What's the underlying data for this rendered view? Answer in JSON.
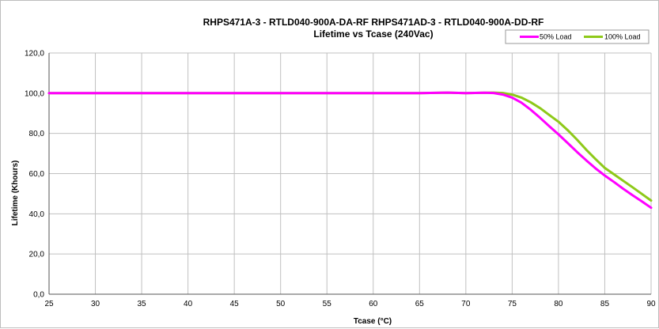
{
  "chart_data": {
    "type": "line",
    "title": "RHPS471A-3 - RTLD040-900A-DA-RF    RHPS471AD-3 - RTLD040-900A-DD-RF",
    "subtitle": "Lifetime vs Tcase (240Vac)",
    "xlabel": "Tcase (°C)",
    "ylabel": "Lifetime (Khours)",
    "xlim": [
      25,
      90
    ],
    "ylim": [
      0,
      120
    ],
    "x_ticks": [
      25,
      30,
      35,
      40,
      45,
      50,
      55,
      60,
      65,
      70,
      75,
      80,
      85,
      90
    ],
    "x_tick_labels": [
      "25",
      "30",
      "35",
      "40",
      "45",
      "50",
      "55",
      "60",
      "65",
      "70",
      "75",
      "80",
      "85",
      "90"
    ],
    "y_ticks": [
      0,
      20,
      40,
      60,
      80,
      100,
      120
    ],
    "y_tick_labels": [
      "0,0",
      "20,0",
      "40,0",
      "60,0",
      "80,0",
      "100,0",
      "120,0"
    ],
    "grid": true,
    "legend_position": "top-right",
    "series": [
      {
        "name": "50% Load",
        "color": "#ff00ff",
        "x": [
          25,
          30,
          35,
          40,
          45,
          50,
          55,
          60,
          65,
          68,
          70,
          72,
          73,
          74,
          75,
          76,
          77,
          78,
          79,
          80,
          81,
          82,
          83,
          84,
          85,
          86,
          87,
          88,
          89,
          90
        ],
        "y": [
          100,
          100,
          100,
          100,
          100,
          100,
          100,
          100,
          100,
          100.3,
          100,
          100.2,
          100.1,
          99.3,
          97.8,
          95.3,
          91.8,
          87.8,
          83.6,
          79.5,
          75.2,
          70.8,
          66.6,
          62.6,
          59,
          55.8,
          52.4,
          49.2,
          46.2,
          43
        ]
      },
      {
        "name": "100% Load",
        "color": "#8ec919",
        "x": [
          25,
          30,
          35,
          40,
          45,
          50,
          55,
          60,
          65,
          68,
          70,
          72,
          73,
          74,
          75,
          76,
          77,
          78,
          79,
          80,
          81,
          82,
          83,
          84,
          85,
          86,
          87,
          88,
          89,
          90
        ],
        "y": [
          100,
          100,
          100,
          100,
          100,
          100,
          100,
          100,
          100,
          100.3,
          100,
          100.2,
          100.3,
          100.1,
          99.3,
          97.8,
          95.5,
          92.6,
          89.2,
          85.8,
          81.6,
          76.9,
          71.9,
          67.2,
          62.8,
          59.6,
          56.4,
          53.2,
          49.9,
          46.6
        ]
      }
    ]
  }
}
